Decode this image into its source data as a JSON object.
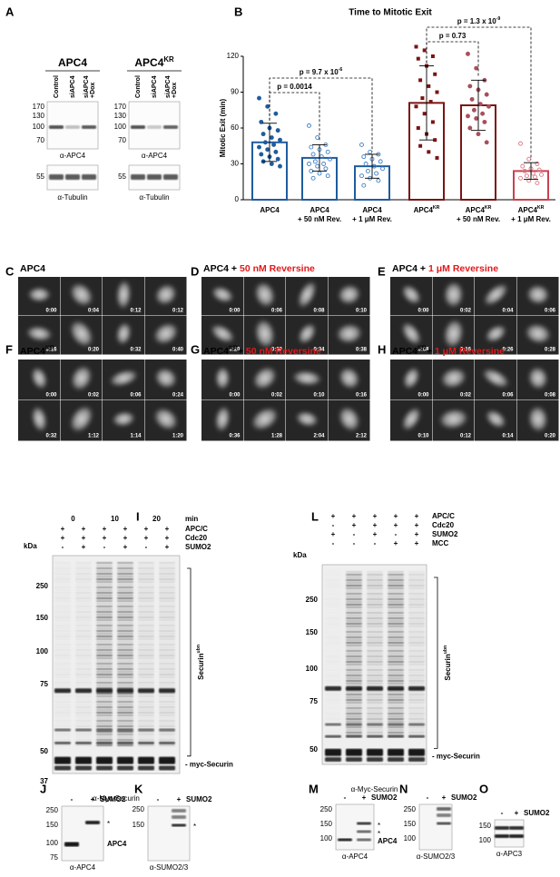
{
  "panels": {
    "A": {
      "label": "A",
      "blots": [
        {
          "title": {
            "text": "APC4"
          },
          "lanes": [
            [
              "Control"
            ],
            [
              "siAPC4"
            ],
            [
              "siAPC4",
              "+Dox"
            ]
          ],
          "mw": [
            170,
            130,
            100,
            70
          ],
          "antibody": "α-APC4",
          "loading_mw": [
            55
          ],
          "loading_antibody": "α-Tubulin"
        },
        {
          "title": {
            "text": "APC4",
            "sup": "KR"
          },
          "lanes": [
            [
              "Control"
            ],
            [
              "siAPC4"
            ],
            [
              "siAPC4",
              "+Dox"
            ]
          ],
          "mw": [
            170,
            130,
            100,
            70
          ],
          "antibody": "α-APC4",
          "loading_mw": [
            55
          ],
          "loading_antibody": "α-Tubulin"
        }
      ]
    },
    "B": {
      "label": "B"
    },
    "C": {
      "label": "C",
      "title": [
        {
          "text": "APC4"
        }
      ],
      "times": [
        "0:00",
        "0:04",
        "0:12",
        "0:12",
        "0:16",
        "0:20",
        "0:32",
        "0:40"
      ]
    },
    "D": {
      "label": "D",
      "title": [
        {
          "text": "APC4 + "
        },
        {
          "text": "50 nM Reversine",
          "highlight": true
        }
      ],
      "times": [
        "0:00",
        "0:06",
        "0:08",
        "0:10",
        "0:20",
        "0:30",
        "0:34",
        "0:38"
      ]
    },
    "E": {
      "label": "E",
      "title": [
        {
          "text": "APC4 + "
        },
        {
          "text": "1 μM Reversine",
          "highlight": true
        }
      ],
      "times": [
        "0:00",
        "0:02",
        "0:04",
        "0:06",
        "0:08",
        "0:16",
        "0:26",
        "0:28"
      ]
    },
    "F": {
      "label": "F",
      "title": [
        {
          "text": "APC4",
          "sup": "KR"
        }
      ],
      "times": [
        "0:00",
        "0:02",
        "0:06",
        "0:24",
        "0:32",
        "1:12",
        "1:14",
        "1:20"
      ]
    },
    "G": {
      "label": "G",
      "title": [
        {
          "text": "APC4",
          "sup": "KR"
        },
        {
          "text": "+ "
        },
        {
          "text": "50 nM Reversine",
          "highlight": true
        }
      ],
      "times": [
        "0:00",
        "0:02",
        "0:10",
        "0:16",
        "0:36",
        "1:28",
        "2:04",
        "2:12"
      ]
    },
    "H": {
      "label": "H",
      "title": [
        {
          "text": "APC4",
          "sup": "KR"
        },
        {
          "text": "+ "
        },
        {
          "text": "1 μM Reversine",
          "highlight": true
        }
      ],
      "times": [
        "0:00",
        "0:02",
        "0:06",
        "0:08",
        "0:10",
        "0:12",
        "0:14",
        "0:20"
      ]
    },
    "I": {
      "label": "I",
      "time_points": [
        0,
        10,
        20
      ],
      "time_unit": "min",
      "conditions": [
        {
          "name": "APC/C",
          "signs": [
            "+",
            "+",
            "+",
            "+",
            "+",
            "+"
          ]
        },
        {
          "name": "Cdc20",
          "signs": [
            "+",
            "+",
            "+",
            "+",
            "+",
            "+"
          ]
        },
        {
          "name": "SUMO2",
          "signs": [
            "-",
            "+",
            "-",
            "+",
            "-",
            "+"
          ]
        }
      ],
      "mw_unit": "kDa",
      "mw": [
        250,
        150,
        100,
        75,
        50,
        37
      ],
      "product": {
        "text": "Securin",
        "sup": "ubn"
      },
      "substrate": "- myc-Securin",
      "antibody": "α-Myc-Securin"
    },
    "L": {
      "label": "L",
      "conditions": [
        {
          "name": "APC/C",
          "signs": [
            "+",
            "+",
            "+",
            "+",
            "+"
          ]
        },
        {
          "name": "Cdc20",
          "signs": [
            "-",
            "+",
            "+",
            "+",
            "+"
          ]
        },
        {
          "name": "SUMO2",
          "signs": [
            "+",
            "-",
            "+",
            "-",
            "+"
          ]
        },
        {
          "name": "MCC",
          "signs": [
            "-",
            "-",
            "-",
            "+",
            "+"
          ]
        }
      ],
      "mw_unit": "kDa",
      "mw": [
        250,
        150,
        100,
        75,
        50
      ],
      "product": {
        "text": "Securin",
        "sup": "ubn"
      },
      "substrate": "- myc-Securin",
      "antibody": "α-Myc-Securin"
    },
    "J": {
      "label": "J",
      "signs": [
        "-",
        "+"
      ],
      "treatment": "SUMO2",
      "mw": [
        250,
        150,
        100,
        75
      ],
      "marks": [
        "*"
      ],
      "target": "APC4",
      "antibody": "α-APC4"
    },
    "K": {
      "label": "K",
      "signs": [
        "-",
        "+"
      ],
      "treatment": "SUMO2",
      "mw": [
        250,
        150
      ],
      "marks": [
        "*"
      ],
      "antibody": "α-SUMO2/3"
    },
    "M": {
      "label": "M",
      "signs": [
        "-",
        "+"
      ],
      "treatment": "SUMO2",
      "mw": [
        250,
        150,
        100
      ],
      "marks": [
        "*",
        "*"
      ],
      "target": "APC4",
      "antibody": "α-APC4"
    },
    "N": {
      "label": "N",
      "signs": [
        "-",
        "+"
      ],
      "treatment": "SUMO2",
      "mw": [
        250,
        150,
        100
      ],
      "antibody": "α-SUMO2/3"
    },
    "O": {
      "label": "O",
      "signs": [
        "-",
        "+"
      ],
      "treatment": "SUMO2",
      "mw": [
        150,
        100
      ],
      "antibody": "α-APC3"
    }
  },
  "chart_data": {
    "type": "bar",
    "title": "Time to Mitotic Exit",
    "y_label": "Mitotic Exit (min)",
    "categories": [
      {
        "name": "APC4"
      },
      {
        "name": "APC4",
        "detail": "+ 50 nM Rev."
      },
      {
        "name": "APC4",
        "detail": "+ 1 μM Rev."
      },
      {
        "name": "APC4",
        "sup": "KR"
      },
      {
        "name": "APC4",
        "sup": "KR",
        "detail": "+ 50 nM Rev."
      },
      {
        "name": "APC4",
        "sup": "KR",
        "detail": "+ 1 μM Rev."
      }
    ],
    "values": [
      48,
      35,
      28,
      81,
      79,
      24
    ],
    "errors": [
      16,
      11,
      10,
      31,
      21,
      7
    ],
    "colors": [
      "#1f5c9e",
      "#1f5c9e",
      "#1f5c9e",
      "#7a1414",
      "#7a1414",
      "#c9414f"
    ],
    "point_colors": [
      "#1f5c9e",
      "#3f7fc4",
      "#3f7fc4",
      "#7a1414",
      "#a8505c",
      "#d77a84"
    ],
    "point_styles": [
      "filled-circle",
      "open-circle",
      "open-circle",
      "filled-square",
      "filled-circle",
      "open-circle"
    ],
    "points": [
      [
        85,
        78,
        72,
        65,
        60,
        58,
        55,
        52,
        50,
        48,
        46,
        44,
        42,
        40,
        38,
        36,
        34,
        32,
        30,
        28
      ],
      [
        62,
        52,
        46,
        44,
        42,
        40,
        38,
        36,
        34,
        32,
        30,
        30,
        28,
        26,
        24,
        22,
        20,
        18
      ],
      [
        46,
        40,
        38,
        36,
        34,
        32,
        30,
        28,
        26,
        24,
        22,
        20,
        18,
        16,
        12
      ],
      [
        128,
        125,
        120,
        118,
        112,
        105,
        100,
        95,
        90,
        85,
        82,
        78,
        72,
        65,
        60,
        55,
        50,
        45,
        40,
        35
      ],
      [
        122,
        110,
        100,
        95,
        92,
        88,
        84,
        80,
        78,
        75,
        72,
        70,
        68,
        65,
        60,
        55,
        48
      ],
      [
        47,
        34,
        30,
        28,
        26,
        25,
        24,
        22,
        21,
        20,
        19,
        18,
        16,
        14
      ]
    ],
    "annotations": [
      {
        "text": "p = 0.0014"
      },
      {
        "text": "p = 9.7 x 10",
        "sup": "-6"
      },
      {
        "text": "p = 0.73"
      },
      {
        "text": "p = 1.3 x 10",
        "sup": "-9"
      }
    ],
    "ylim": [
      0,
      120
    ],
    "yticks": [
      0,
      30,
      60,
      90,
      120
    ]
  }
}
